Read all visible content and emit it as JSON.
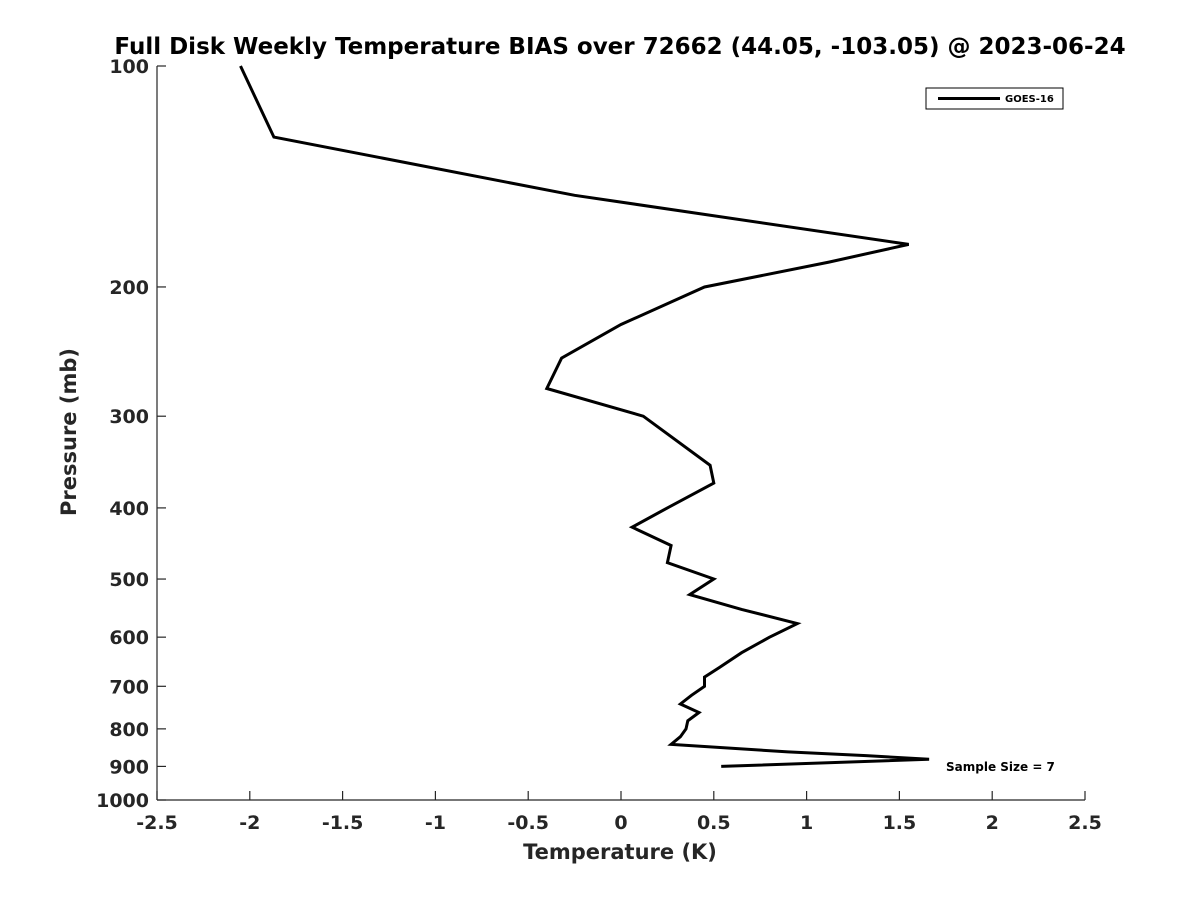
{
  "chart_data": {
    "type": "line",
    "title": "Full Disk Weekly Temperature BIAS over 72662 (44.05, -103.05) @ 2023-06-24",
    "xlabel": "Temperature (K)",
    "ylabel": "Pressure (mb)",
    "xlim": [
      -2.5,
      2.5
    ],
    "ylim": [
      1000,
      100
    ],
    "y_scale": "log",
    "grid": false,
    "legend_position": "top-right",
    "x_ticks": [
      "-2.5",
      "-2",
      "-1.5",
      "-1",
      "-0.5",
      "0",
      "0.5",
      "1",
      "1.5",
      "2",
      "2.5"
    ],
    "x_tick_values": [
      -2.5,
      -2,
      -1.5,
      -1,
      -0.5,
      0,
      0.5,
      1,
      1.5,
      2,
      2.5
    ],
    "y_ticks": [
      "100",
      "200",
      "300",
      "400",
      "500",
      "600",
      "700",
      "800",
      "900",
      "1000"
    ],
    "y_tick_values": [
      100,
      200,
      300,
      400,
      500,
      600,
      700,
      800,
      900,
      1000
    ],
    "series": [
      {
        "name": "GOES-16",
        "color": "#000000",
        "points": [
          {
            "x": -2.05,
            "p": 100
          },
          {
            "x": -1.87,
            "p": 125
          },
          {
            "x": -0.25,
            "p": 150
          },
          {
            "x": 1.55,
            "p": 175
          },
          {
            "x": 1.12,
            "p": 185
          },
          {
            "x": 0.45,
            "p": 200
          },
          {
            "x": 0.0,
            "p": 225
          },
          {
            "x": -0.32,
            "p": 250
          },
          {
            "x": -0.4,
            "p": 275
          },
          {
            "x": 0.12,
            "p": 300
          },
          {
            "x": 0.48,
            "p": 350
          },
          {
            "x": 0.5,
            "p": 370
          },
          {
            "x": 0.25,
            "p": 400
          },
          {
            "x": 0.06,
            "p": 425
          },
          {
            "x": 0.27,
            "p": 450
          },
          {
            "x": 0.25,
            "p": 475
          },
          {
            "x": 0.5,
            "p": 500
          },
          {
            "x": 0.37,
            "p": 525
          },
          {
            "x": 0.65,
            "p": 550
          },
          {
            "x": 0.95,
            "p": 575
          },
          {
            "x": 0.8,
            "p": 600
          },
          {
            "x": 0.65,
            "p": 630
          },
          {
            "x": 0.53,
            "p": 660
          },
          {
            "x": 0.45,
            "p": 680
          },
          {
            "x": 0.45,
            "p": 700
          },
          {
            "x": 0.38,
            "p": 720
          },
          {
            "x": 0.32,
            "p": 740
          },
          {
            "x": 0.42,
            "p": 760
          },
          {
            "x": 0.36,
            "p": 780
          },
          {
            "x": 0.35,
            "p": 800
          },
          {
            "x": 0.32,
            "p": 820
          },
          {
            "x": 0.27,
            "p": 840
          },
          {
            "x": 0.9,
            "p": 860
          },
          {
            "x": 1.32,
            "p": 870
          },
          {
            "x": 1.66,
            "p": 880
          },
          {
            "x": 0.54,
            "p": 900
          }
        ]
      }
    ],
    "annotation": "Sample Size = 7"
  }
}
